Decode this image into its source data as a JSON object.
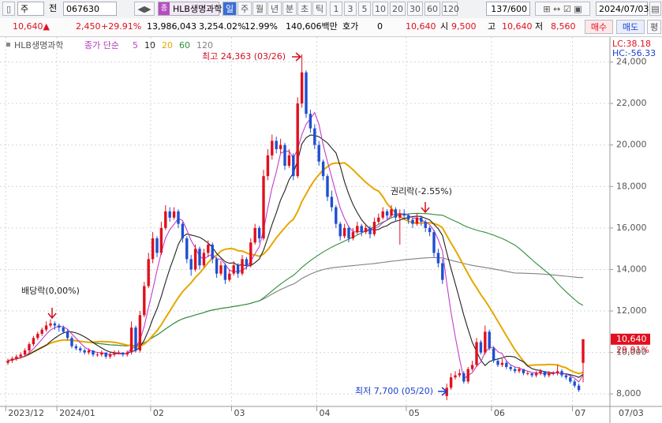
{
  "toolbar": {
    "period_type": "주",
    "compare": "전",
    "code": "067630",
    "name": "HLB생명과학",
    "intervals": [
      "일",
      "주",
      "월",
      "년",
      "분",
      "초",
      "틱"
    ],
    "minutes": [
      "1",
      "3",
      "5",
      "10",
      "20",
      "30",
      "60",
      "120"
    ],
    "count": "137/600",
    "date": "2024/07/03"
  },
  "quote": {
    "price": "10,640",
    "change": "2,450",
    "change_pct": "+29.91%",
    "volume": "13,986,043",
    "volume_pct": "3,254.02%",
    "turnover": "12.99%",
    "amount": "140,606백만",
    "bid_label": "호가",
    "bid": "0",
    "bid_price": "10,640",
    "open_label": "시",
    "open": "9,500",
    "high_label": "고",
    "high": "10,640",
    "low_label": "저",
    "low": "8,560",
    "buy": "매수",
    "sell": "매도",
    "avg": "평"
  },
  "chart_data": {
    "type": "candlestick",
    "ticker": "HLB생명과학",
    "ma_label": "종가 단순",
    "ma_periods": [
      5,
      10,
      20,
      60,
      120
    ],
    "ma_colors": [
      "#c23ec8",
      "#222222",
      "#e6a700",
      "#2e8f3a",
      "#808080"
    ],
    "up_color": "#e0101e",
    "down_color": "#1f4fd0",
    "ylim": [
      7400,
      25200
    ],
    "yticks": [
      {
        "value": 8000,
        "label": "8,000"
      },
      {
        "value": 10000,
        "label": "10,000"
      },
      {
        "value": 12000,
        "label": "12,000"
      },
      {
        "value": 14000,
        "label": "14,000"
      },
      {
        "value": 16000,
        "label": "16,000"
      },
      {
        "value": 18000,
        "label": "18,000"
      },
      {
        "value": 20000,
        "label": "20,000"
      },
      {
        "value": 22000,
        "label": "22,000"
      },
      {
        "value": 24000,
        "label": "24,000"
      }
    ],
    "grid": true,
    "categories": [
      "2023/12",
      null,
      null,
      null,
      null,
      null,
      null,
      null,
      null,
      null,
      null,
      null,
      "2024/01",
      null,
      null,
      null,
      null,
      null,
      null,
      null,
      null,
      null,
      null,
      null,
      null,
      null,
      null,
      null,
      null,
      null,
      null,
      null,
      null,
      null,
      "02",
      null,
      null,
      null,
      null,
      null,
      null,
      null,
      null,
      null,
      null,
      null,
      null,
      null,
      null,
      null,
      null,
      null,
      null,
      "03",
      null,
      null,
      null,
      null,
      null,
      null,
      null,
      null,
      null,
      null,
      null,
      null,
      null,
      null,
      null,
      null,
      null,
      null,
      null,
      "04",
      null,
      null,
      null,
      null,
      null,
      null,
      null,
      null,
      null,
      null,
      null,
      null,
      null,
      null,
      null,
      null,
      null,
      null,
      null,
      null,
      "05",
      null,
      null,
      null,
      null,
      null,
      null,
      null,
      null,
      null,
      null,
      null,
      null,
      null,
      null,
      null,
      null,
      null,
      null,
      null,
      "06",
      null,
      null,
      null,
      null,
      null,
      null,
      null,
      null,
      null,
      null,
      null,
      null,
      null,
      null,
      null,
      null,
      null,
      null,
      "07",
      null,
      null
    ],
    "last_date": "07/03",
    "ohlc": [
      [
        9500,
        9700,
        9400,
        9600
      ],
      [
        9600,
        9800,
        9500,
        9700
      ],
      [
        9700,
        9900,
        9600,
        9800
      ],
      [
        9800,
        10000,
        9700,
        9900
      ],
      [
        9900,
        10200,
        9800,
        10100
      ],
      [
        10100,
        10500,
        10000,
        10400
      ],
      [
        10400,
        10800,
        10300,
        10700
      ],
      [
        10700,
        11000,
        10600,
        10900
      ],
      [
        10900,
        11200,
        10800,
        11100
      ],
      [
        11100,
        11500,
        11000,
        11300
      ],
      [
        11300,
        11600,
        11200,
        11400
      ],
      [
        11400,
        11500,
        11100,
        11300
      ],
      [
        11300,
        11400,
        11000,
        11200
      ],
      [
        11200,
        11300,
        10900,
        11000
      ],
      [
        11000,
        11100,
        10600,
        10700
      ],
      [
        10700,
        10800,
        10200,
        10300
      ],
      [
        10300,
        10400,
        10100,
        10200
      ],
      [
        10200,
        10300,
        10000,
        10100
      ],
      [
        10100,
        10200,
        9900,
        10000
      ],
      [
        10000,
        10200,
        9900,
        10100
      ],
      [
        10100,
        10100,
        9800,
        9900
      ],
      [
        9900,
        10000,
        9800,
        9900
      ],
      [
        9900,
        10100,
        9800,
        10000
      ],
      [
        10000,
        10000,
        9700,
        9800
      ],
      [
        9800,
        10000,
        9700,
        9900
      ],
      [
        9900,
        10100,
        9800,
        10000
      ],
      [
        10000,
        10100,
        9900,
        10000
      ],
      [
        10000,
        10000,
        9800,
        9900
      ],
      [
        9900,
        10100,
        9800,
        10000
      ],
      [
        10000,
        11500,
        9900,
        11200
      ],
      [
        11200,
        11300,
        10000,
        10100
      ],
      [
        10100,
        12000,
        10000,
        11800
      ],
      [
        11800,
        13400,
        11700,
        13200
      ],
      [
        13200,
        14800,
        13100,
        14500
      ],
      [
        14500,
        15800,
        14300,
        15500
      ],
      [
        15500,
        15600,
        14600,
        14800
      ],
      [
        14800,
        16300,
        14700,
        16000
      ],
      [
        16000,
        17100,
        15900,
        16800
      ],
      [
        16800,
        17000,
        16300,
        16500
      ],
      [
        16500,
        17000,
        16400,
        16800
      ],
      [
        16800,
        16900,
        16000,
        16200
      ],
      [
        16200,
        16300,
        15300,
        15500
      ],
      [
        15500,
        15600,
        14300,
        14500
      ],
      [
        14500,
        14700,
        13700,
        14000
      ],
      [
        14000,
        15200,
        13900,
        15000
      ],
      [
        15000,
        15100,
        14000,
        14200
      ],
      [
        14200,
        15000,
        14100,
        14800
      ],
      [
        14800,
        15400,
        14600,
        15200
      ],
      [
        15200,
        15300,
        14300,
        14500
      ],
      [
        14500,
        14600,
        13600,
        13800
      ],
      [
        13800,
        14400,
        13700,
        14200
      ],
      [
        14200,
        14300,
        13300,
        13500
      ],
      [
        13500,
        14000,
        13400,
        13800
      ],
      [
        13800,
        14400,
        13700,
        14200
      ],
      [
        14200,
        14300,
        13600,
        13800
      ],
      [
        13800,
        14700,
        13700,
        14500
      ],
      [
        14500,
        14600,
        14000,
        14200
      ],
      [
        14200,
        15500,
        14100,
        15300
      ],
      [
        15300,
        16200,
        15200,
        16000
      ],
      [
        16000,
        16100,
        15300,
        15500
      ],
      [
        15500,
        18800,
        15400,
        18500
      ],
      [
        18500,
        19800,
        18300,
        19500
      ],
      [
        19500,
        20500,
        19300,
        20200
      ],
      [
        20200,
        20400,
        19600,
        19800
      ],
      [
        19800,
        20300,
        19600,
        20000
      ],
      [
        20000,
        20100,
        18800,
        19000
      ],
      [
        19000,
        19800,
        18900,
        19500
      ],
      [
        19500,
        19600,
        18300,
        18500
      ],
      [
        18500,
        22300,
        18400,
        22000
      ],
      [
        22000,
        24363,
        21800,
        23500
      ],
      [
        23500,
        23600,
        21300,
        21500
      ],
      [
        21500,
        21700,
        20600,
        20800
      ],
      [
        20800,
        21000,
        19800,
        20000
      ],
      [
        20000,
        20200,
        19000,
        19200
      ],
      [
        19200,
        19300,
        18300,
        18500
      ],
      [
        18500,
        18600,
        17300,
        17500
      ],
      [
        17500,
        17800,
        16800,
        17000
      ],
      [
        17000,
        17100,
        16000,
        16200
      ],
      [
        16200,
        16300,
        15400,
        15600
      ],
      [
        15600,
        16200,
        15500,
        16000
      ],
      [
        16000,
        16100,
        15300,
        15500
      ],
      [
        15500,
        16000,
        15400,
        15800
      ],
      [
        15800,
        16300,
        15700,
        16100
      ],
      [
        16100,
        16200,
        15600,
        15800
      ],
      [
        15800,
        16200,
        15700,
        16000
      ],
      [
        16000,
        16100,
        15500,
        15700
      ],
      [
        15700,
        16500,
        15600,
        16300
      ],
      [
        16300,
        16700,
        16200,
        16500
      ],
      [
        16500,
        17000,
        16400,
        16800
      ],
      [
        16800,
        16900,
        16400,
        16600
      ],
      [
        16600,
        17100,
        16500,
        16900
      ],
      [
        16900,
        17000,
        16300,
        16500
      ],
      [
        16500,
        16900,
        15200,
        16700
      ],
      [
        16700,
        16900,
        16400,
        16600
      ],
      [
        16600,
        16700,
        16200,
        16400
      ],
      [
        16400,
        16500,
        16000,
        16200
      ],
      [
        16200,
        16700,
        16100,
        16500
      ],
      [
        16500,
        16600,
        16100,
        16300
      ],
      [
        16300,
        16400,
        15800,
        16000
      ],
      [
        16000,
        16100,
        15600,
        15800
      ],
      [
        15800,
        15900,
        14600,
        14800
      ],
      [
        14800,
        15000,
        14100,
        14300
      ],
      [
        14300,
        14500,
        13300,
        13500
      ],
      [
        7900,
        8500,
        7700,
        8300
      ],
      [
        8300,
        9000,
        8200,
        8800
      ],
      [
        8800,
        9100,
        8700,
        8900
      ],
      [
        8900,
        9200,
        8800,
        9000
      ],
      [
        9000,
        9100,
        8500,
        8600
      ],
      [
        8600,
        9300,
        8500,
        9200
      ],
      [
        9200,
        9600,
        9100,
        9400
      ],
      [
        9400,
        10700,
        9300,
        10500
      ],
      [
        10500,
        10600,
        9900,
        10000
      ],
      [
        10000,
        11300,
        9900,
        11000
      ],
      [
        11000,
        11100,
        10100,
        10200
      ],
      [
        10200,
        10300,
        9500,
        9600
      ],
      [
        9600,
        9700,
        9300,
        9400
      ],
      [
        9400,
        9700,
        9300,
        9500
      ],
      [
        9500,
        9600,
        9200,
        9300
      ],
      [
        9300,
        9400,
        9100,
        9200
      ],
      [
        9200,
        9300,
        9000,
        9100
      ],
      [
        9100,
        9300,
        9000,
        9200
      ],
      [
        9200,
        9200,
        8900,
        9000
      ],
      [
        9000,
        9100,
        8900,
        9000
      ],
      [
        9000,
        9000,
        8800,
        8900
      ],
      [
        8900,
        9100,
        8800,
        9000
      ],
      [
        9000,
        9200,
        8900,
        9100
      ],
      [
        9100,
        9100,
        8800,
        8900
      ],
      [
        8900,
        9100,
        8800,
        9000
      ],
      [
        9000,
        9100,
        8900,
        9000
      ],
      [
        9000,
        9400,
        8900,
        9100
      ],
      [
        9100,
        9200,
        8800,
        8900
      ],
      [
        8900,
        9000,
        8700,
        8800
      ],
      [
        8800,
        8900,
        8500,
        8600
      ],
      [
        8600,
        8700,
        8300,
        8400
      ],
      [
        8400,
        8500,
        8100,
        8190
      ],
      [
        9500,
        10640,
        8560,
        10640
      ]
    ],
    "high_note": "최고 24,363 (03/26)",
    "low_note": "최저 7,700 (05/20)",
    "events": [
      "배당락(0,00%)",
      "권리락(-2.55%)"
    ],
    "last_price_label": "10,640",
    "last_change_label": "29.91%",
    "lc": "LC:38.18",
    "hc": "HC:-56.33"
  }
}
